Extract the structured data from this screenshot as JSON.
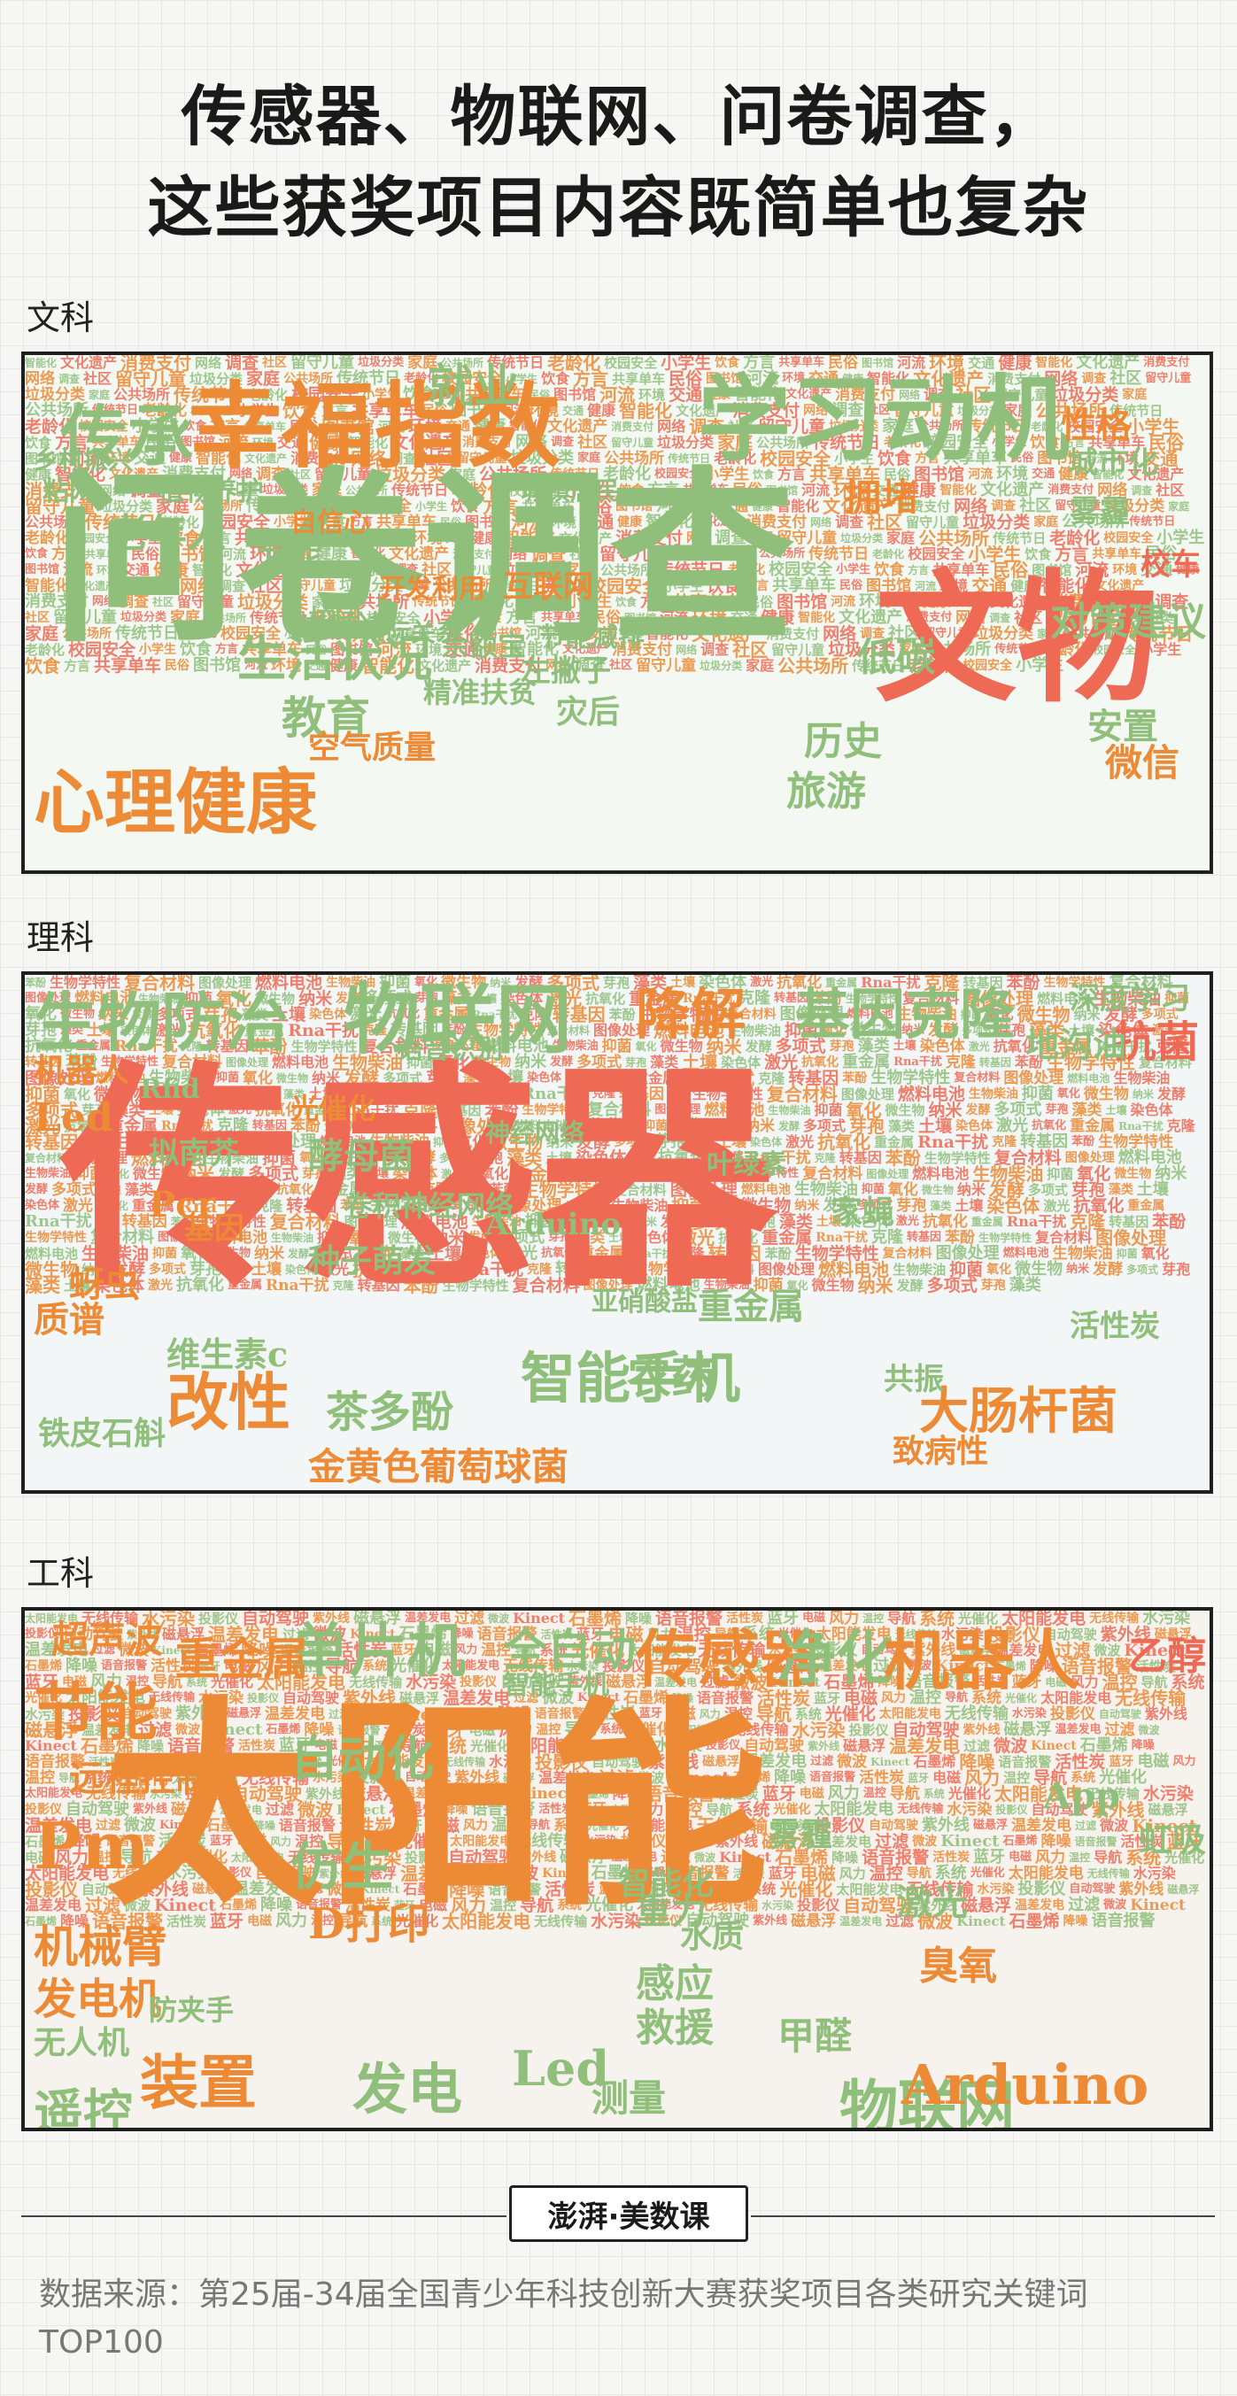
{
  "title_line1": "传感器、物联网、问卷调查，",
  "title_line2": "这些获奖项目内容既简单也复杂",
  "colors": {
    "green": "#8fbf7a",
    "red": "#ee6a55",
    "orange": "#ec8a35"
  },
  "sections": {
    "liberal_arts": {
      "label": "文科",
      "words": [
        "问卷调查",
        "心理健康",
        "学习动机",
        "幸福指数",
        "传承",
        "文物",
        "教育",
        "生活状况",
        "对策建议",
        "拥堵",
        "历史",
        "旅游",
        "微信",
        "安置",
        "就业",
        "老年人",
        "性格",
        "节能",
        "低碳",
        "城市化",
        "互联网",
        "空气质量",
        "灾后",
        "精准扶贫",
        "左撇子",
        "余额宝",
        "开发利用",
        "人际关系",
        "粘网",
        "植物养护",
        "自信心",
        "校园",
        "城镇居民",
        "乡村振兴",
        "雾霾",
        "节能减排",
        "对比分析",
        "校车"
      ],
      "filler": [
        "智能化",
        "文化遗产",
        "消费支付",
        "网络",
        "调查",
        "社区",
        "留守儿童",
        "垃圾分类",
        "家庭",
        "公共场所",
        "传统节日",
        "老龄化",
        "校园安全",
        "小学生",
        "饮食",
        "方言",
        "共享单车",
        "民俗",
        "图书馆",
        "河流",
        "环境",
        "交通",
        "健康"
      ]
    },
    "science": {
      "label": "理科",
      "words": [
        "传感器",
        "物联网",
        "生物防治",
        "降解",
        "基因克隆",
        "抗菌",
        "智能手机",
        "大肠杆菌",
        "改性",
        "农药",
        "茶多酚",
        "金黄色葡萄球菌",
        "维生素c",
        "机器人",
        "Led",
        "Arduino",
        "酵母菌",
        "拟南芥",
        "基因",
        "家蝇",
        "重金属",
        "种子萌发",
        "地沟油",
        "蚜虫",
        "质谱",
        "光催化",
        "语音识别",
        "神经网络",
        "深度学习",
        "共振",
        "致病性",
        "Pcr",
        "Rfid",
        "卷积神经网络",
        "亚硝酸盐",
        "铁皮石斛",
        "活性炭",
        "叶绿素"
      ],
      "filler": [
        "苯酚",
        "生物学特性",
        "复合材料",
        "图像处理",
        "燃料电池",
        "生物柴油",
        "抑菌",
        "氧化",
        "微生物",
        "纳米",
        "发酵",
        "多项式",
        "芽孢",
        "藻类",
        "土壤",
        "染色体",
        "激光",
        "抗氧化",
        "重金属",
        "Rna干扰",
        "克隆",
        "转基因"
      ]
    },
    "engineering": {
      "label": "工科",
      "words": [
        "太阳能",
        "传感器",
        "单片机",
        "净化",
        "机器人",
        "物联网",
        "装置",
        "发电",
        "Led",
        "Arduino",
        "节能",
        "Pm",
        "自动化",
        "仿生",
        "机械臂",
        "发电机",
        "遥控",
        "超声波",
        "重金属",
        "全自动",
        "智能手机",
        "远程控制",
        "D打印",
        "甲醛",
        "臭氧",
        "激光",
        "感应",
        "救援",
        "测量",
        "重力",
        "无人机",
        "防夹手",
        "智能化",
        "雾霾",
        "水质",
        "乙醇",
        "App",
        "虹吸"
      ],
      "filler": [
        "太阳能发电",
        "无线传输",
        "水污染",
        "投影仪",
        "自动驾驶",
        "紫外线",
        "磁悬浮",
        "温差发电",
        "过滤",
        "微波",
        "Kinect",
        "石墨烯",
        "降噪",
        "语音报警",
        "活性炭",
        "蓝牙",
        "电磁",
        "风力",
        "温控",
        "导航",
        "系统",
        "光催化"
      ]
    }
  },
  "logo": "澎湃·美数课",
  "source": "数据来源：第25届-34届全国青少年科技创新大赛获奖项目各类研究关键词TOP100"
}
